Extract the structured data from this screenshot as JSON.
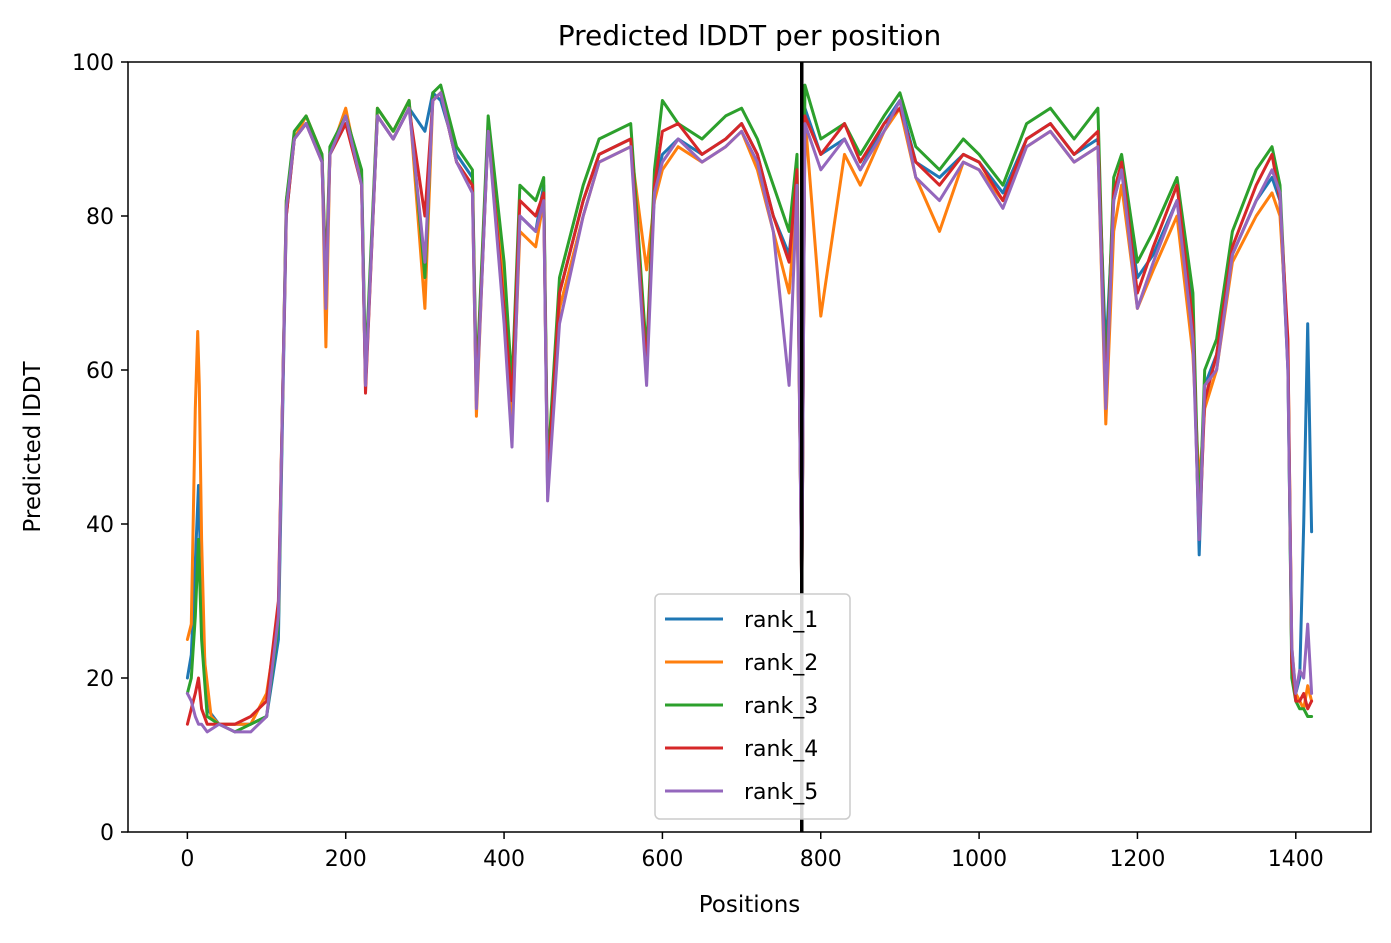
{
  "chart_data": {
    "type": "line",
    "title": "Predicted lDDT per position",
    "xlabel": "Positions",
    "ylabel": "Predicted lDDT",
    "xlim": [
      -75,
      1495
    ],
    "ylim": [
      0,
      100
    ],
    "xticks": [
      0,
      200,
      400,
      600,
      800,
      1000,
      1200,
      1400
    ],
    "yticks": [
      0,
      20,
      40,
      60,
      80,
      100
    ],
    "grid": false,
    "legend_position": "bottom-center",
    "vertical_line": {
      "x": 776,
      "color": "#000000"
    },
    "colors": [
      "#1f77b4",
      "#ff7f0e",
      "#2ca02c",
      "#d62728",
      "#9467bd"
    ],
    "series": [
      {
        "name": "rank_1",
        "x": [
          0,
          5,
          10,
          14,
          18,
          25,
          40,
          60,
          80,
          100,
          115,
          125,
          135,
          150,
          170,
          175,
          180,
          200,
          220,
          225,
          240,
          260,
          280,
          300,
          310,
          320,
          340,
          360,
          365,
          380,
          400,
          410,
          420,
          440,
          450,
          455,
          470,
          500,
          520,
          560,
          580,
          590,
          600,
          620,
          650,
          680,
          700,
          720,
          740,
          760,
          770,
          776,
          780,
          800,
          830,
          850,
          880,
          900,
          920,
          950,
          980,
          1000,
          1030,
          1060,
          1090,
          1120,
          1150,
          1160,
          1170,
          1180,
          1200,
          1220,
          1250,
          1270,
          1278,
          1285,
          1300,
          1320,
          1350,
          1370,
          1380,
          1390,
          1395,
          1400,
          1405,
          1410,
          1415,
          1420
        ],
        "values": [
          20,
          23,
          35,
          45,
          30,
          16,
          14,
          14,
          14,
          15,
          25,
          80,
          90,
          92,
          88,
          70,
          88,
          92,
          85,
          58,
          93,
          90,
          94,
          91,
          96,
          95,
          88,
          85,
          57,
          92,
          72,
          55,
          80,
          78,
          84,
          44,
          70,
          82,
          88,
          90,
          60,
          84,
          88,
          90,
          88,
          90,
          92,
          88,
          80,
          75,
          85,
          31,
          94,
          88,
          90,
          86,
          92,
          95,
          87,
          85,
          88,
          87,
          83,
          90,
          92,
          88,
          90,
          62,
          82,
          86,
          72,
          75,
          82,
          68,
          36,
          58,
          62,
          75,
          82,
          85,
          82,
          60,
          22,
          18,
          20,
          40,
          66,
          39
        ]
      },
      {
        "name": "rank_2",
        "x": [
          0,
          5,
          10,
          13,
          15,
          18,
          22,
          30,
          40,
          60,
          80,
          100,
          115,
          125,
          135,
          150,
          170,
          175,
          180,
          200,
          220,
          225,
          240,
          260,
          280,
          300,
          310,
          320,
          340,
          360,
          365,
          380,
          400,
          410,
          420,
          440,
          450,
          455,
          470,
          500,
          520,
          560,
          580,
          590,
          600,
          620,
          650,
          680,
          700,
          720,
          740,
          760,
          770,
          776,
          780,
          800,
          830,
          850,
          880,
          900,
          920,
          950,
          980,
          1000,
          1030,
          1060,
          1090,
          1120,
          1150,
          1160,
          1170,
          1180,
          1200,
          1220,
          1250,
          1270,
          1278,
          1285,
          1300,
          1320,
          1350,
          1370,
          1380,
          1390,
          1395,
          1400,
          1405,
          1410,
          1415,
          1420
        ],
        "values": [
          25,
          27,
          55,
          65,
          58,
          38,
          22,
          15,
          14,
          14,
          14,
          18,
          28,
          82,
          90,
          93,
          88,
          63,
          88,
          94,
          84,
          58,
          94,
          91,
          95,
          68,
          95,
          96,
          87,
          84,
          54,
          92,
          70,
          52,
          78,
          76,
          82,
          45,
          68,
          80,
          87,
          89,
          73,
          82,
          86,
          89,
          87,
          89,
          91,
          86,
          78,
          70,
          83,
          31,
          93,
          67,
          88,
          84,
          91,
          94,
          85,
          78,
          87,
          86,
          82,
          89,
          91,
          87,
          89,
          53,
          78,
          84,
          68,
          73,
          80,
          62,
          45,
          55,
          60,
          74,
          80,
          83,
          80,
          63,
          24,
          18,
          17,
          16,
          19,
          17
        ]
      },
      {
        "name": "rank_3",
        "x": [
          0,
          5,
          10,
          14,
          18,
          25,
          40,
          60,
          80,
          100,
          115,
          125,
          135,
          150,
          170,
          175,
          180,
          200,
          220,
          225,
          240,
          260,
          280,
          300,
          310,
          320,
          340,
          360,
          365,
          380,
          400,
          410,
          420,
          440,
          450,
          455,
          470,
          500,
          520,
          560,
          580,
          590,
          600,
          620,
          650,
          680,
          700,
          720,
          740,
          760,
          770,
          776,
          780,
          800,
          830,
          850,
          880,
          900,
          920,
          950,
          980,
          1000,
          1030,
          1060,
          1090,
          1120,
          1150,
          1160,
          1170,
          1180,
          1200,
          1220,
          1250,
          1270,
          1278,
          1285,
          1300,
          1320,
          1350,
          1370,
          1380,
          1390,
          1395,
          1400,
          1405,
          1410,
          1415,
          1420
        ],
        "values": [
          18,
          20,
          28,
          38,
          25,
          15,
          14,
          13,
          14,
          15,
          27,
          82,
          91,
          93,
          88,
          72,
          89,
          93,
          86,
          60,
          94,
          91,
          95,
          72,
          96,
          97,
          89,
          86,
          58,
          93,
          74,
          58,
          84,
          82,
          85,
          47,
          72,
          84,
          90,
          92,
          62,
          86,
          95,
          92,
          90,
          93,
          94,
          90,
          84,
          78,
          88,
          30,
          97,
          90,
          92,
          88,
          93,
          96,
          89,
          86,
          90,
          88,
          84,
          92,
          94,
          90,
          94,
          58,
          85,
          88,
          74,
          78,
          85,
          70,
          40,
          60,
          64,
          78,
          86,
          89,
          84,
          62,
          20,
          17,
          16,
          16,
          15,
          15
        ]
      },
      {
        "name": "rank_4",
        "x": [
          0,
          5,
          10,
          14,
          18,
          25,
          40,
          60,
          80,
          100,
          115,
          125,
          135,
          150,
          170,
          175,
          180,
          200,
          220,
          225,
          240,
          260,
          280,
          300,
          310,
          320,
          340,
          360,
          365,
          380,
          400,
          410,
          420,
          440,
          450,
          455,
          470,
          500,
          520,
          560,
          580,
          590,
          600,
          620,
          650,
          680,
          700,
          720,
          740,
          760,
          770,
          776,
          780,
          800,
          830,
          850,
          880,
          900,
          920,
          950,
          980,
          1000,
          1030,
          1060,
          1090,
          1120,
          1150,
          1160,
          1170,
          1180,
          1200,
          1220,
          1250,
          1270,
          1278,
          1285,
          1300,
          1320,
          1350,
          1370,
          1380,
          1390,
          1395,
          1400,
          1405,
          1410,
          1415,
          1420
        ],
        "values": [
          14,
          16,
          18,
          20,
          16,
          14,
          14,
          14,
          15,
          17,
          30,
          80,
          90,
          92,
          87,
          70,
          88,
          92,
          84,
          57,
          93,
          90,
          94,
          80,
          95,
          96,
          87,
          84,
          56,
          91,
          68,
          56,
          82,
          80,
          83,
          45,
          70,
          82,
          88,
          90,
          60,
          84,
          91,
          92,
          88,
          90,
          92,
          88,
          80,
          74,
          86,
          30,
          93,
          88,
          92,
          87,
          92,
          94,
          87,
          84,
          88,
          87,
          82,
          90,
          92,
          88,
          91,
          56,
          83,
          87,
          70,
          76,
          84,
          66,
          38,
          56,
          62,
          76,
          84,
          88,
          82,
          64,
          22,
          17,
          17,
          18,
          16,
          17
        ]
      },
      {
        "name": "rank_5",
        "x": [
          0,
          5,
          10,
          14,
          18,
          25,
          40,
          60,
          80,
          100,
          115,
          125,
          135,
          150,
          170,
          175,
          180,
          200,
          220,
          225,
          240,
          260,
          280,
          300,
          310,
          320,
          340,
          360,
          365,
          380,
          400,
          410,
          420,
          440,
          450,
          455,
          470,
          500,
          520,
          560,
          580,
          590,
          600,
          620,
          650,
          680,
          700,
          720,
          740,
          760,
          770,
          776,
          780,
          800,
          830,
          850,
          880,
          900,
          920,
          950,
          980,
          1000,
          1030,
          1060,
          1090,
          1120,
          1150,
          1160,
          1170,
          1180,
          1200,
          1220,
          1250,
          1270,
          1278,
          1285,
          1300,
          1320,
          1350,
          1370,
          1380,
          1390,
          1395,
          1400,
          1405,
          1410,
          1415,
          1420
        ],
        "values": [
          18,
          17,
          15,
          14,
          14,
          13,
          14,
          13,
          13,
          15,
          28,
          81,
          90,
          92,
          87,
          68,
          88,
          93,
          84,
          58,
          93,
          90,
          94,
          74,
          95,
          96,
          87,
          83,
          55,
          91,
          66,
          50,
          80,
          78,
          82,
          43,
          66,
          80,
          87,
          89,
          58,
          83,
          87,
          90,
          87,
          89,
          91,
          87,
          78,
          58,
          84,
          30,
          92,
          86,
          90,
          86,
          91,
          95,
          85,
          82,
          87,
          86,
          81,
          89,
          91,
          87,
          89,
          55,
          82,
          86,
          68,
          74,
          82,
          64,
          38,
          58,
          60,
          75,
          82,
          86,
          83,
          60,
          24,
          18,
          21,
          20,
          27,
          18
        ]
      }
    ]
  }
}
